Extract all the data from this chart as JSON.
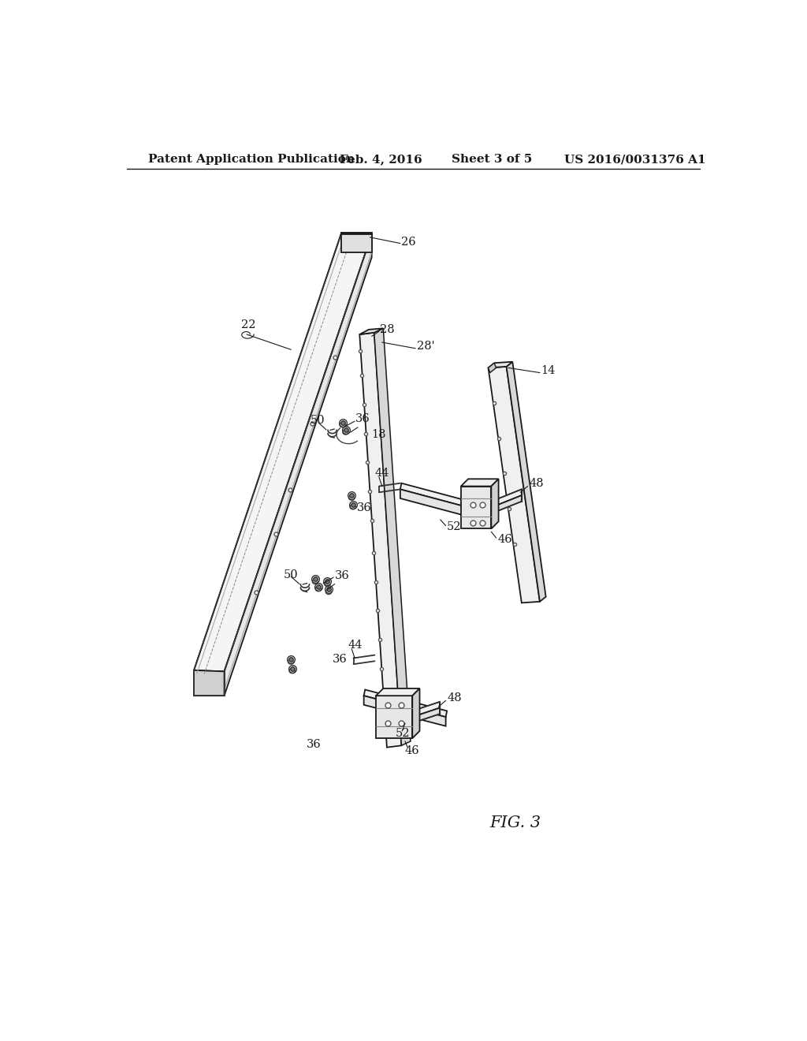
{
  "title": "Patent Application Publication",
  "date": "Feb. 4, 2016",
  "sheet": "Sheet 3 of 5",
  "patent_num": "US 2016/0031376 A1",
  "fig_label": "FIG. 3",
  "background": "#ffffff",
  "line_color": "#1a1a1a",
  "gray_light": "#f0f0f0",
  "gray_mid": "#d8d8d8",
  "gray_dark": "#b8b8b8"
}
